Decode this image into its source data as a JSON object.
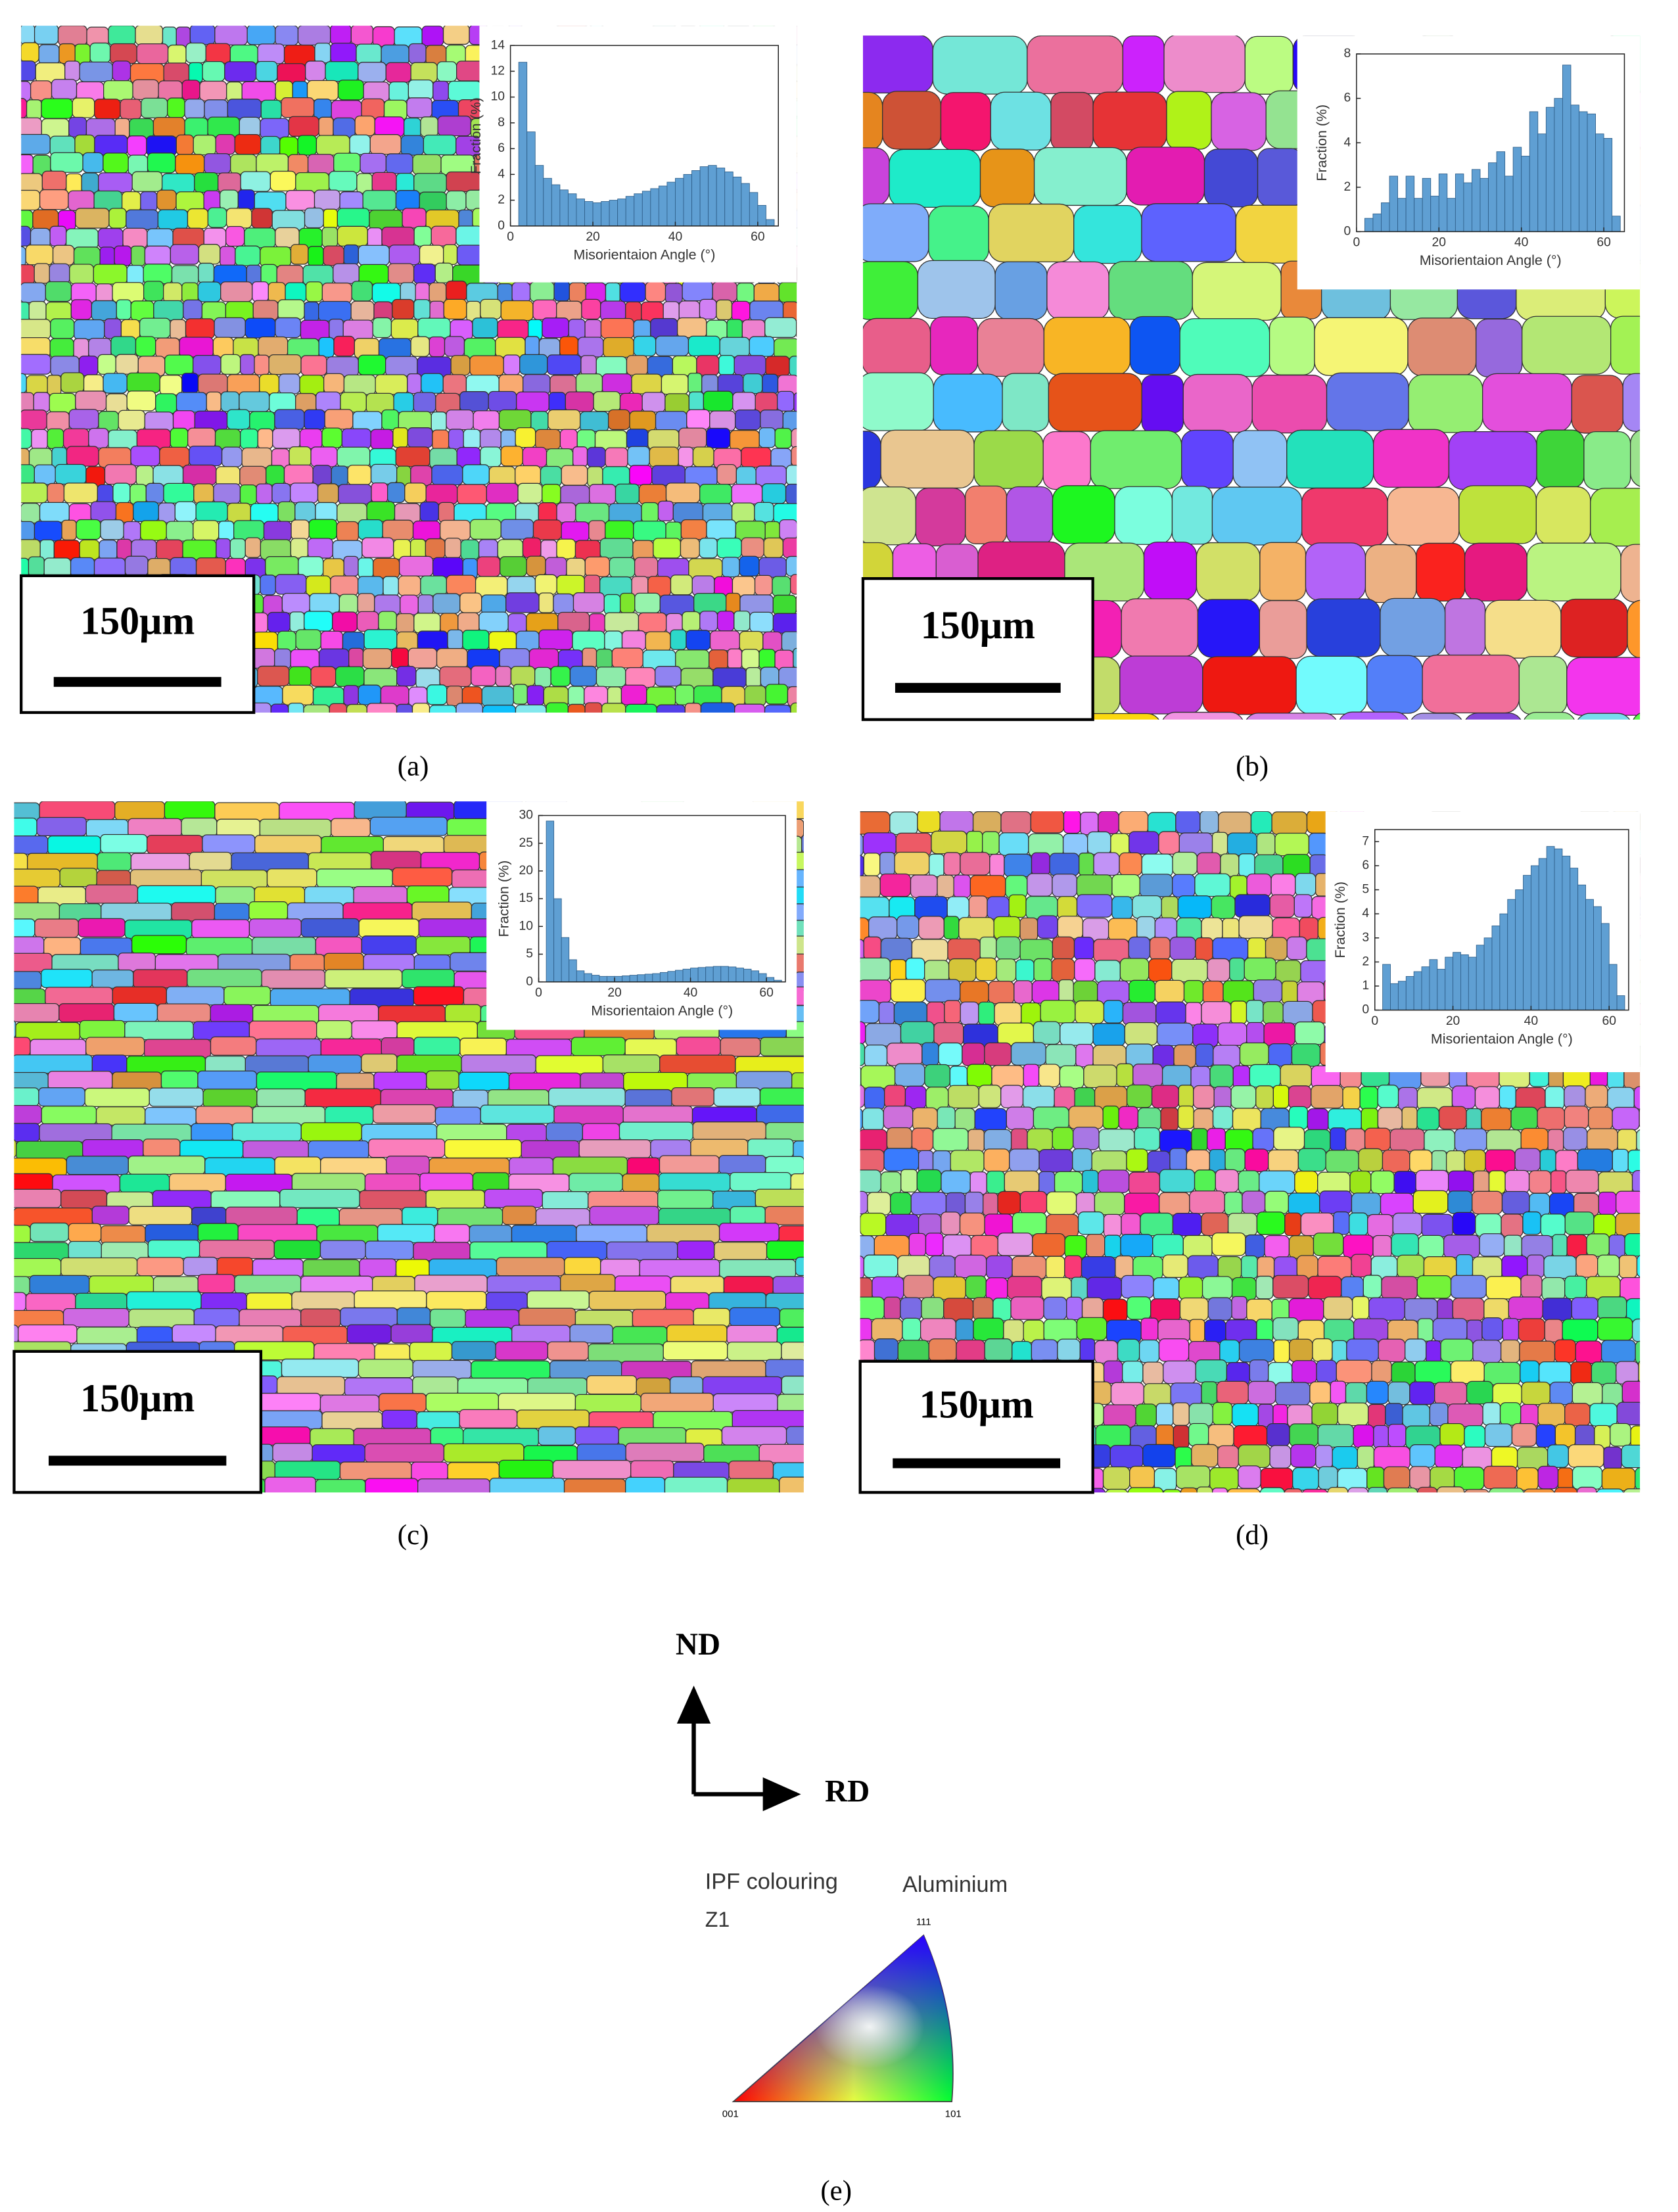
{
  "chart_data": [
    {
      "type": "histogram",
      "label": "(a)",
      "scale_bar": "150μm",
      "xlabel": "Misorientaion Angle (°)",
      "ylabel": "Fraction (%)",
      "color": "#5f9fd3",
      "bins": [
        2,
        4,
        6,
        8,
        10,
        12,
        14,
        16,
        18,
        20,
        22,
        24,
        26,
        28,
        30,
        32,
        34,
        36,
        38,
        40,
        42,
        44,
        46,
        48,
        50,
        52,
        54,
        56,
        58,
        60,
        62,
        64
      ],
      "values": [
        12.7,
        7.3,
        4.7,
        3.7,
        3.2,
        2.8,
        2.5,
        2.1,
        1.9,
        1.8,
        1.9,
        2.0,
        2.1,
        2.3,
        2.5,
        2.7,
        2.9,
        3.1,
        3.4,
        3.7,
        4.0,
        4.3,
        4.6,
        4.7,
        4.5,
        4.2,
        3.8,
        3.3,
        2.6,
        1.6,
        0.5
      ],
      "xlim": [
        0,
        65
      ],
      "xticks": [
        0,
        20,
        40,
        60
      ],
      "ylim": [
        0,
        14
      ],
      "yticks": [
        0,
        2,
        4,
        6,
        8,
        10,
        12,
        14
      ]
    },
    {
      "type": "histogram",
      "label": "(b)",
      "scale_bar": "150μm",
      "xlabel": "Misorientaion Angle (°)",
      "ylabel": "Fraction (%)",
      "color": "#5f9fd3",
      "bins": [
        2,
        4,
        6,
        8,
        10,
        12,
        14,
        16,
        18,
        20,
        22,
        24,
        26,
        28,
        30,
        32,
        34,
        36,
        38,
        40,
        42,
        44,
        46,
        48,
        50,
        52,
        54,
        56,
        58,
        60,
        62,
        64
      ],
      "values": [
        0.6,
        0.8,
        1.3,
        2.5,
        1.5,
        2.5,
        1.5,
        2.4,
        1.6,
        2.6,
        1.5,
        2.6,
        2.2,
        2.8,
        2.4,
        3.1,
        3.6,
        2.5,
        3.8,
        3.4,
        5.4,
        4.4,
        5.6,
        6.0,
        7.5,
        5.7,
        5.4,
        5.3,
        4.4,
        4.2,
        0.7
      ],
      "xlim": [
        0,
        65
      ],
      "xticks": [
        0,
        20,
        40,
        60
      ],
      "ylim": [
        0,
        8
      ],
      "yticks": [
        0,
        2,
        4,
        6,
        8
      ]
    },
    {
      "type": "histogram",
      "label": "(c)",
      "scale_bar": "150μm",
      "xlabel": "Misorientaion Angle (°)",
      "ylabel": "Fraction (%)",
      "color": "#5f9fd3",
      "bins": [
        2,
        4,
        6,
        8,
        10,
        12,
        14,
        16,
        18,
        20,
        22,
        24,
        26,
        28,
        30,
        32,
        34,
        36,
        38,
        40,
        42,
        44,
        46,
        48,
        50,
        52,
        54,
        56,
        58,
        60,
        62,
        64
      ],
      "values": [
        29,
        15,
        8,
        4,
        2,
        1.5,
        1.2,
        1,
        1,
        1,
        1.1,
        1.2,
        1.3,
        1.4,
        1.5,
        1.7,
        1.9,
        2.1,
        2.3,
        2.5,
        2.6,
        2.7,
        2.8,
        2.8,
        2.7,
        2.5,
        2.3,
        2.0,
        1.5,
        0.8,
        0.3
      ],
      "xlim": [
        0,
        65
      ],
      "xticks": [
        0,
        20,
        40,
        60
      ],
      "ylim": [
        0,
        30
      ],
      "yticks": [
        0,
        5,
        10,
        15,
        20,
        25,
        30
      ]
    },
    {
      "type": "histogram",
      "label": "(d)",
      "scale_bar": "150μm",
      "xlabel": "Misorientaion Angle (°)",
      "ylabel": "Fraction (%)",
      "color": "#5f9fd3",
      "bins": [
        2,
        4,
        6,
        8,
        10,
        12,
        14,
        16,
        18,
        20,
        22,
        24,
        26,
        28,
        30,
        32,
        34,
        36,
        38,
        40,
        42,
        44,
        46,
        48,
        50,
        52,
        54,
        56,
        58,
        60,
        62,
        64
      ],
      "values": [
        1.9,
        1.1,
        1.2,
        1.4,
        1.6,
        1.8,
        2.1,
        1.7,
        2.2,
        2.4,
        2.3,
        2.2,
        2.7,
        3.0,
        3.5,
        4.0,
        4.6,
        5.0,
        5.6,
        6.0,
        6.3,
        6.8,
        6.7,
        6.4,
        5.9,
        5.2,
        4.6,
        4.3,
        3.6,
        1.9,
        0.6
      ],
      "xlim": [
        0,
        65
      ],
      "xticks": [
        0,
        20,
        40,
        60
      ],
      "ylim": [
        0,
        7.5
      ],
      "yticks": [
        0,
        1,
        2,
        3,
        4,
        5,
        6,
        7
      ]
    }
  ],
  "key_figure": {
    "label": "(e)",
    "nd": "ND",
    "rd": "RD",
    "title": "IPF colouring",
    "phase": "Aluminium",
    "axis": "Z1",
    "corner_111": "111",
    "corner_001": "001",
    "corner_101": "101"
  }
}
